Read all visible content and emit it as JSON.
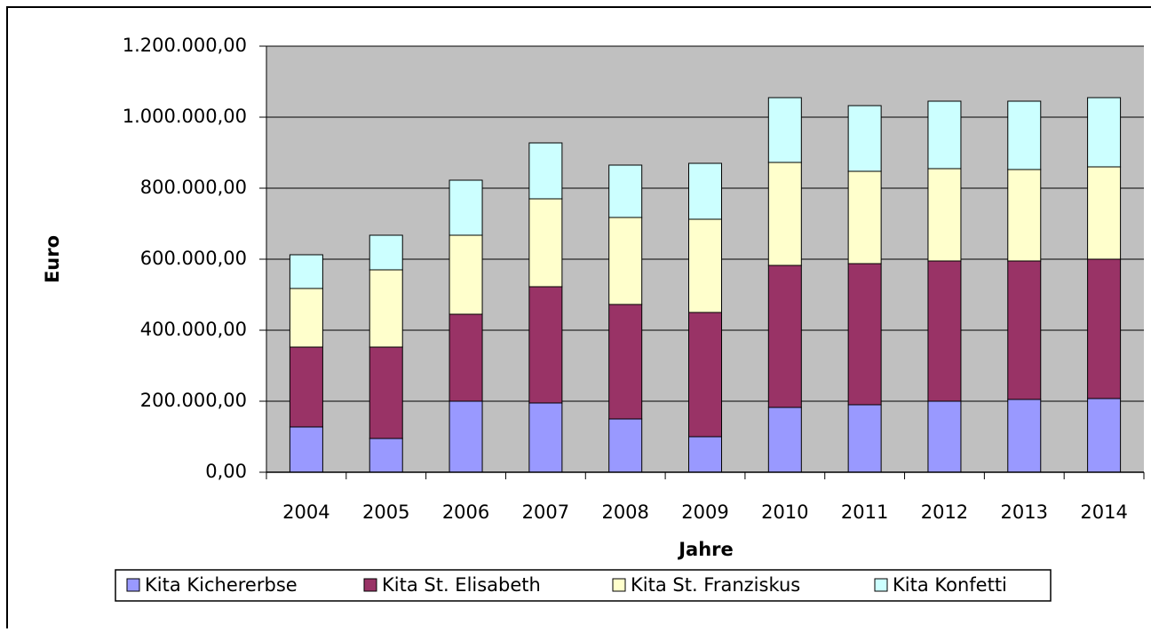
{
  "chart_data": {
    "type": "stacked_bar",
    "x_label": "Jahre",
    "y_label": "Euro",
    "categories": [
      "2004",
      "2005",
      "2006",
      "2007",
      "2008",
      "2009",
      "2010",
      "2011",
      "2012",
      "2013",
      "2014"
    ],
    "series": [
      {
        "name": "Kita Kichererbse",
        "color": "#9999ff",
        "values": [
          127500,
          95000,
          200000,
          195000,
          150000,
          100000,
          182500,
          190000,
          200000,
          205000,
          207500
        ]
      },
      {
        "name": "Kita St. Elisabeth",
        "color": "#993366",
        "values": [
          225000,
          257500,
          245000,
          327500,
          322500,
          350000,
          400000,
          397500,
          395000,
          390000,
          392500
        ]
      },
      {
        "name": "Kita St. Franziskus",
        "color": "#ffffcc",
        "values": [
          165000,
          217500,
          222500,
          247500,
          245000,
          262500,
          290000,
          260000,
          260000,
          257500,
          260000
        ]
      },
      {
        "name": "Kita Konfetti",
        "color": "#ccffff",
        "values": [
          95000,
          97500,
          155000,
          157500,
          147500,
          157500,
          182500,
          185000,
          190000,
          192500,
          195000
        ]
      }
    ],
    "ylim": [
      0,
      1200000
    ],
    "yticks": [
      {
        "value": 0,
        "label": "0,00"
      },
      {
        "value": 200000,
        "label": "200.000,00"
      },
      {
        "value": 400000,
        "label": "400.000,00"
      },
      {
        "value": 600000,
        "label": "600.000,00"
      },
      {
        "value": 800000,
        "label": "800.000,00"
      },
      {
        "value": 1000000,
        "label": "1.000.000,00"
      },
      {
        "value": 1200000,
        "label": "1.200.000,00"
      }
    ],
    "grid": true,
    "plot_background": "#c0c0c0",
    "legend": "bottom"
  }
}
